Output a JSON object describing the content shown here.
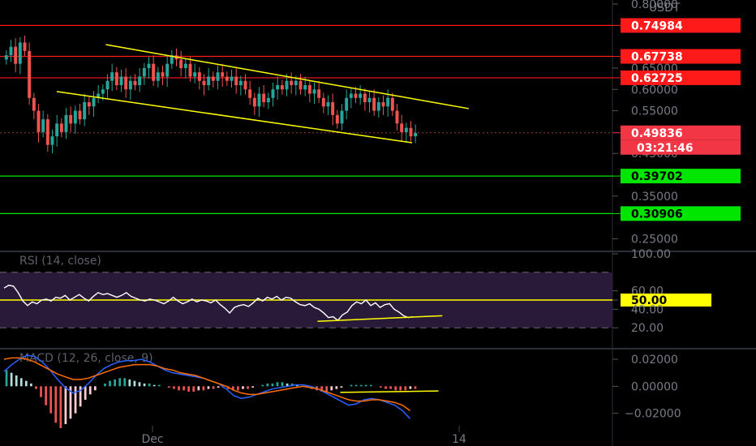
{
  "chart_data": [
    {
      "type": "candlestick",
      "pane": "price",
      "price_scale": {
        "ticks": [
          "0.80000",
          "0.74984",
          "0.65000",
          "0.60000",
          "0.55000",
          "0.45000",
          "0.35000",
          "0.25000"
        ],
        "currency": "USDT",
        "ylim": [
          0.23,
          0.8
        ]
      },
      "x_ticks": [
        "Dec",
        "14"
      ],
      "horizontal_levels": [
        {
          "value": 0.74984,
          "label": "0.74984",
          "color": "#ff1a1a",
          "role": "resistance"
        },
        {
          "value": 0.67738,
          "label": "0.67738",
          "color": "#ff1a1a",
          "role": "resistance"
        },
        {
          "value": 0.62725,
          "label": "0.62725",
          "color": "#ff1a1a",
          "role": "resistance"
        },
        {
          "value": 0.39702,
          "label": "0.39702",
          "color": "#00e600",
          "role": "support"
        },
        {
          "value": 0.30906,
          "label": "0.30906",
          "color": "#00e600",
          "role": "support"
        }
      ],
      "last_price": {
        "value": 0.49836,
        "label": "0.49836",
        "countdown": "03:21:46",
        "color": "#f23645"
      },
      "trendlines": [
        {
          "name": "channel-top",
          "from": [
            0.14,
            0.705
          ],
          "to": [
            0.62,
            0.555
          ],
          "color": "#ffff00"
        },
        {
          "name": "channel-bottom",
          "from": [
            0.075,
            0.595
          ],
          "to": [
            0.545,
            0.475
          ],
          "color": "#ffff00"
        }
      ],
      "closes": [
        0.68,
        0.7,
        0.66,
        0.71,
        0.69,
        0.58,
        0.55,
        0.5,
        0.53,
        0.47,
        0.49,
        0.52,
        0.5,
        0.54,
        0.52,
        0.55,
        0.53,
        0.57,
        0.56,
        0.58,
        0.59,
        0.6,
        0.62,
        0.64,
        0.61,
        0.63,
        0.6,
        0.62,
        0.61,
        0.63,
        0.65,
        0.66,
        0.62,
        0.64,
        0.63,
        0.66,
        0.68,
        0.67,
        0.65,
        0.66,
        0.63,
        0.64,
        0.62,
        0.61,
        0.63,
        0.62,
        0.64,
        0.63,
        0.62,
        0.63,
        0.61,
        0.62,
        0.6,
        0.58,
        0.56,
        0.59,
        0.57,
        0.58,
        0.6,
        0.61,
        0.6,
        0.62,
        0.61,
        0.62,
        0.6,
        0.61,
        0.59,
        0.6,
        0.58,
        0.56,
        0.57,
        0.54,
        0.52,
        0.55,
        0.58,
        0.59,
        0.58,
        0.59,
        0.57,
        0.58,
        0.55,
        0.57,
        0.56,
        0.58,
        0.55,
        0.52,
        0.5,
        0.51,
        0.49,
        0.498
      ]
    },
    {
      "type": "line",
      "pane": "rsi",
      "title": "RSI (14, close)",
      "ticks": [
        "100.00",
        "60.00",
        "50.00",
        "40.00",
        "20.00"
      ],
      "ylim": [
        0,
        100
      ],
      "band": [
        20,
        80
      ],
      "midline": {
        "value": 50,
        "label": "50.00",
        "color": "#ffff00"
      },
      "trendline": {
        "from": [
          0.42,
          27
        ],
        "to": [
          0.585,
          33
        ],
        "color": "#ffff00"
      },
      "values": [
        63,
        66,
        65,
        58,
        49,
        44,
        48,
        46,
        50,
        51,
        49,
        53,
        52,
        55,
        50,
        53,
        56,
        52,
        49,
        54,
        58,
        56,
        57,
        55,
        53,
        55,
        58,
        54,
        52,
        50,
        49,
        51,
        50,
        48,
        46,
        49,
        53,
        49,
        46,
        48,
        51,
        48,
        50,
        49,
        47,
        50,
        45,
        41,
        36,
        42,
        44,
        45,
        43,
        47,
        52,
        49,
        53,
        51,
        54,
        50,
        53,
        52,
        48,
        45,
        44,
        46,
        42,
        40,
        36,
        31,
        32,
        28,
        34,
        37,
        44,
        48,
        46,
        50,
        44,
        47,
        42,
        45,
        46,
        40,
        37,
        33,
        31,
        32
      ]
    },
    {
      "type": "histogram+line",
      "pane": "macd",
      "title": "MACD (12, 26, close, 9)",
      "ticks": [
        "0.02000",
        "0.00000",
        "−0.02000"
      ],
      "ylim": [
        -0.034,
        0.026
      ],
      "trendline": {
        "from": [
          0.45,
          -0.0045
        ],
        "to": [
          0.58,
          -0.0035
        ],
        "color": "#ffff00"
      },
      "series": [
        {
          "name": "MACD",
          "color": "#2962ff",
          "values": [
            0.011,
            0.016,
            0.02,
            0.023,
            0.022,
            0.018,
            0.012,
            0.005,
            -0.001,
            -0.005,
            -0.003,
            0.002,
            0.008,
            0.013,
            0.016,
            0.018,
            0.019,
            0.019,
            0.02,
            0.018,
            0.015,
            0.012,
            0.01,
            0.009,
            0.008,
            0.007,
            0.006,
            0.004,
            0.002,
            -0.002,
            -0.007,
            -0.009,
            -0.008,
            -0.006,
            -0.004,
            -0.002,
            -0.001,
            0.0,
            0.001,
            0.001,
            0.0,
            -0.002,
            -0.005,
            -0.008,
            -0.011,
            -0.014,
            -0.013,
            -0.01,
            -0.009,
            -0.01,
            -0.012,
            -0.014,
            -0.018,
            -0.024
          ]
        },
        {
          "name": "Signal",
          "color": "#ff6d00",
          "values": [
            0.02,
            0.021,
            0.021,
            0.02,
            0.018,
            0.015,
            0.012,
            0.009,
            0.007,
            0.005,
            0.005,
            0.006,
            0.008,
            0.01,
            0.012,
            0.014,
            0.015,
            0.016,
            0.016,
            0.016,
            0.015,
            0.013,
            0.012,
            0.01,
            0.009,
            0.008,
            0.006,
            0.004,
            0.002,
            0.0,
            -0.003,
            -0.005,
            -0.006,
            -0.006,
            -0.005,
            -0.004,
            -0.003,
            -0.002,
            -0.001,
            0.0,
            -0.001,
            -0.002,
            -0.004,
            -0.006,
            -0.008,
            -0.01,
            -0.011,
            -0.011,
            -0.01,
            -0.01,
            -0.011,
            -0.012,
            -0.014,
            -0.018
          ]
        },
        {
          "name": "Histogram",
          "values": [
            0.012,
            0.01,
            0.008,
            0.006,
            0.004,
            0.002,
            -0.002,
            -0.008,
            -0.014,
            -0.02,
            -0.027,
            -0.031,
            -0.028,
            -0.024,
            -0.02,
            -0.015,
            -0.01,
            -0.006,
            -0.003,
            0.0,
            0.002,
            0.004,
            0.005,
            0.006,
            0.006,
            0.005,
            0.004,
            0.003,
            0.002,
            0.002,
            0.001,
            0.001,
            0.0,
            -0.001,
            -0.002,
            -0.003,
            -0.003,
            -0.004,
            -0.004,
            -0.003,
            -0.003,
            -0.002,
            -0.002,
            -0.001,
            -0.001,
            -0.002,
            -0.003,
            -0.003,
            -0.002,
            -0.002,
            -0.001,
            0.0,
            0.001,
            0.002,
            0.002,
            0.003,
            0.003,
            0.002,
            0.002,
            0.001,
            0.0,
            -0.001,
            -0.002,
            -0.003,
            -0.004,
            -0.004,
            -0.003,
            -0.002,
            -0.001,
            0.0,
            0.001,
            0.001,
            0.001,
            0.001,
            0.001,
            0.0,
            -0.001,
            -0.002,
            -0.002,
            -0.003,
            -0.003,
            -0.003,
            -0.002,
            -0.002
          ]
        }
      ]
    }
  ],
  "colors": {
    "background": "#000000",
    "up": "#26a69a",
    "down": "#ef5350",
    "grid_dash": "#4a4a4a",
    "rsi_band": "#2a1a3a",
    "axis_text": "#787b86",
    "separator": "#2a2e39"
  }
}
